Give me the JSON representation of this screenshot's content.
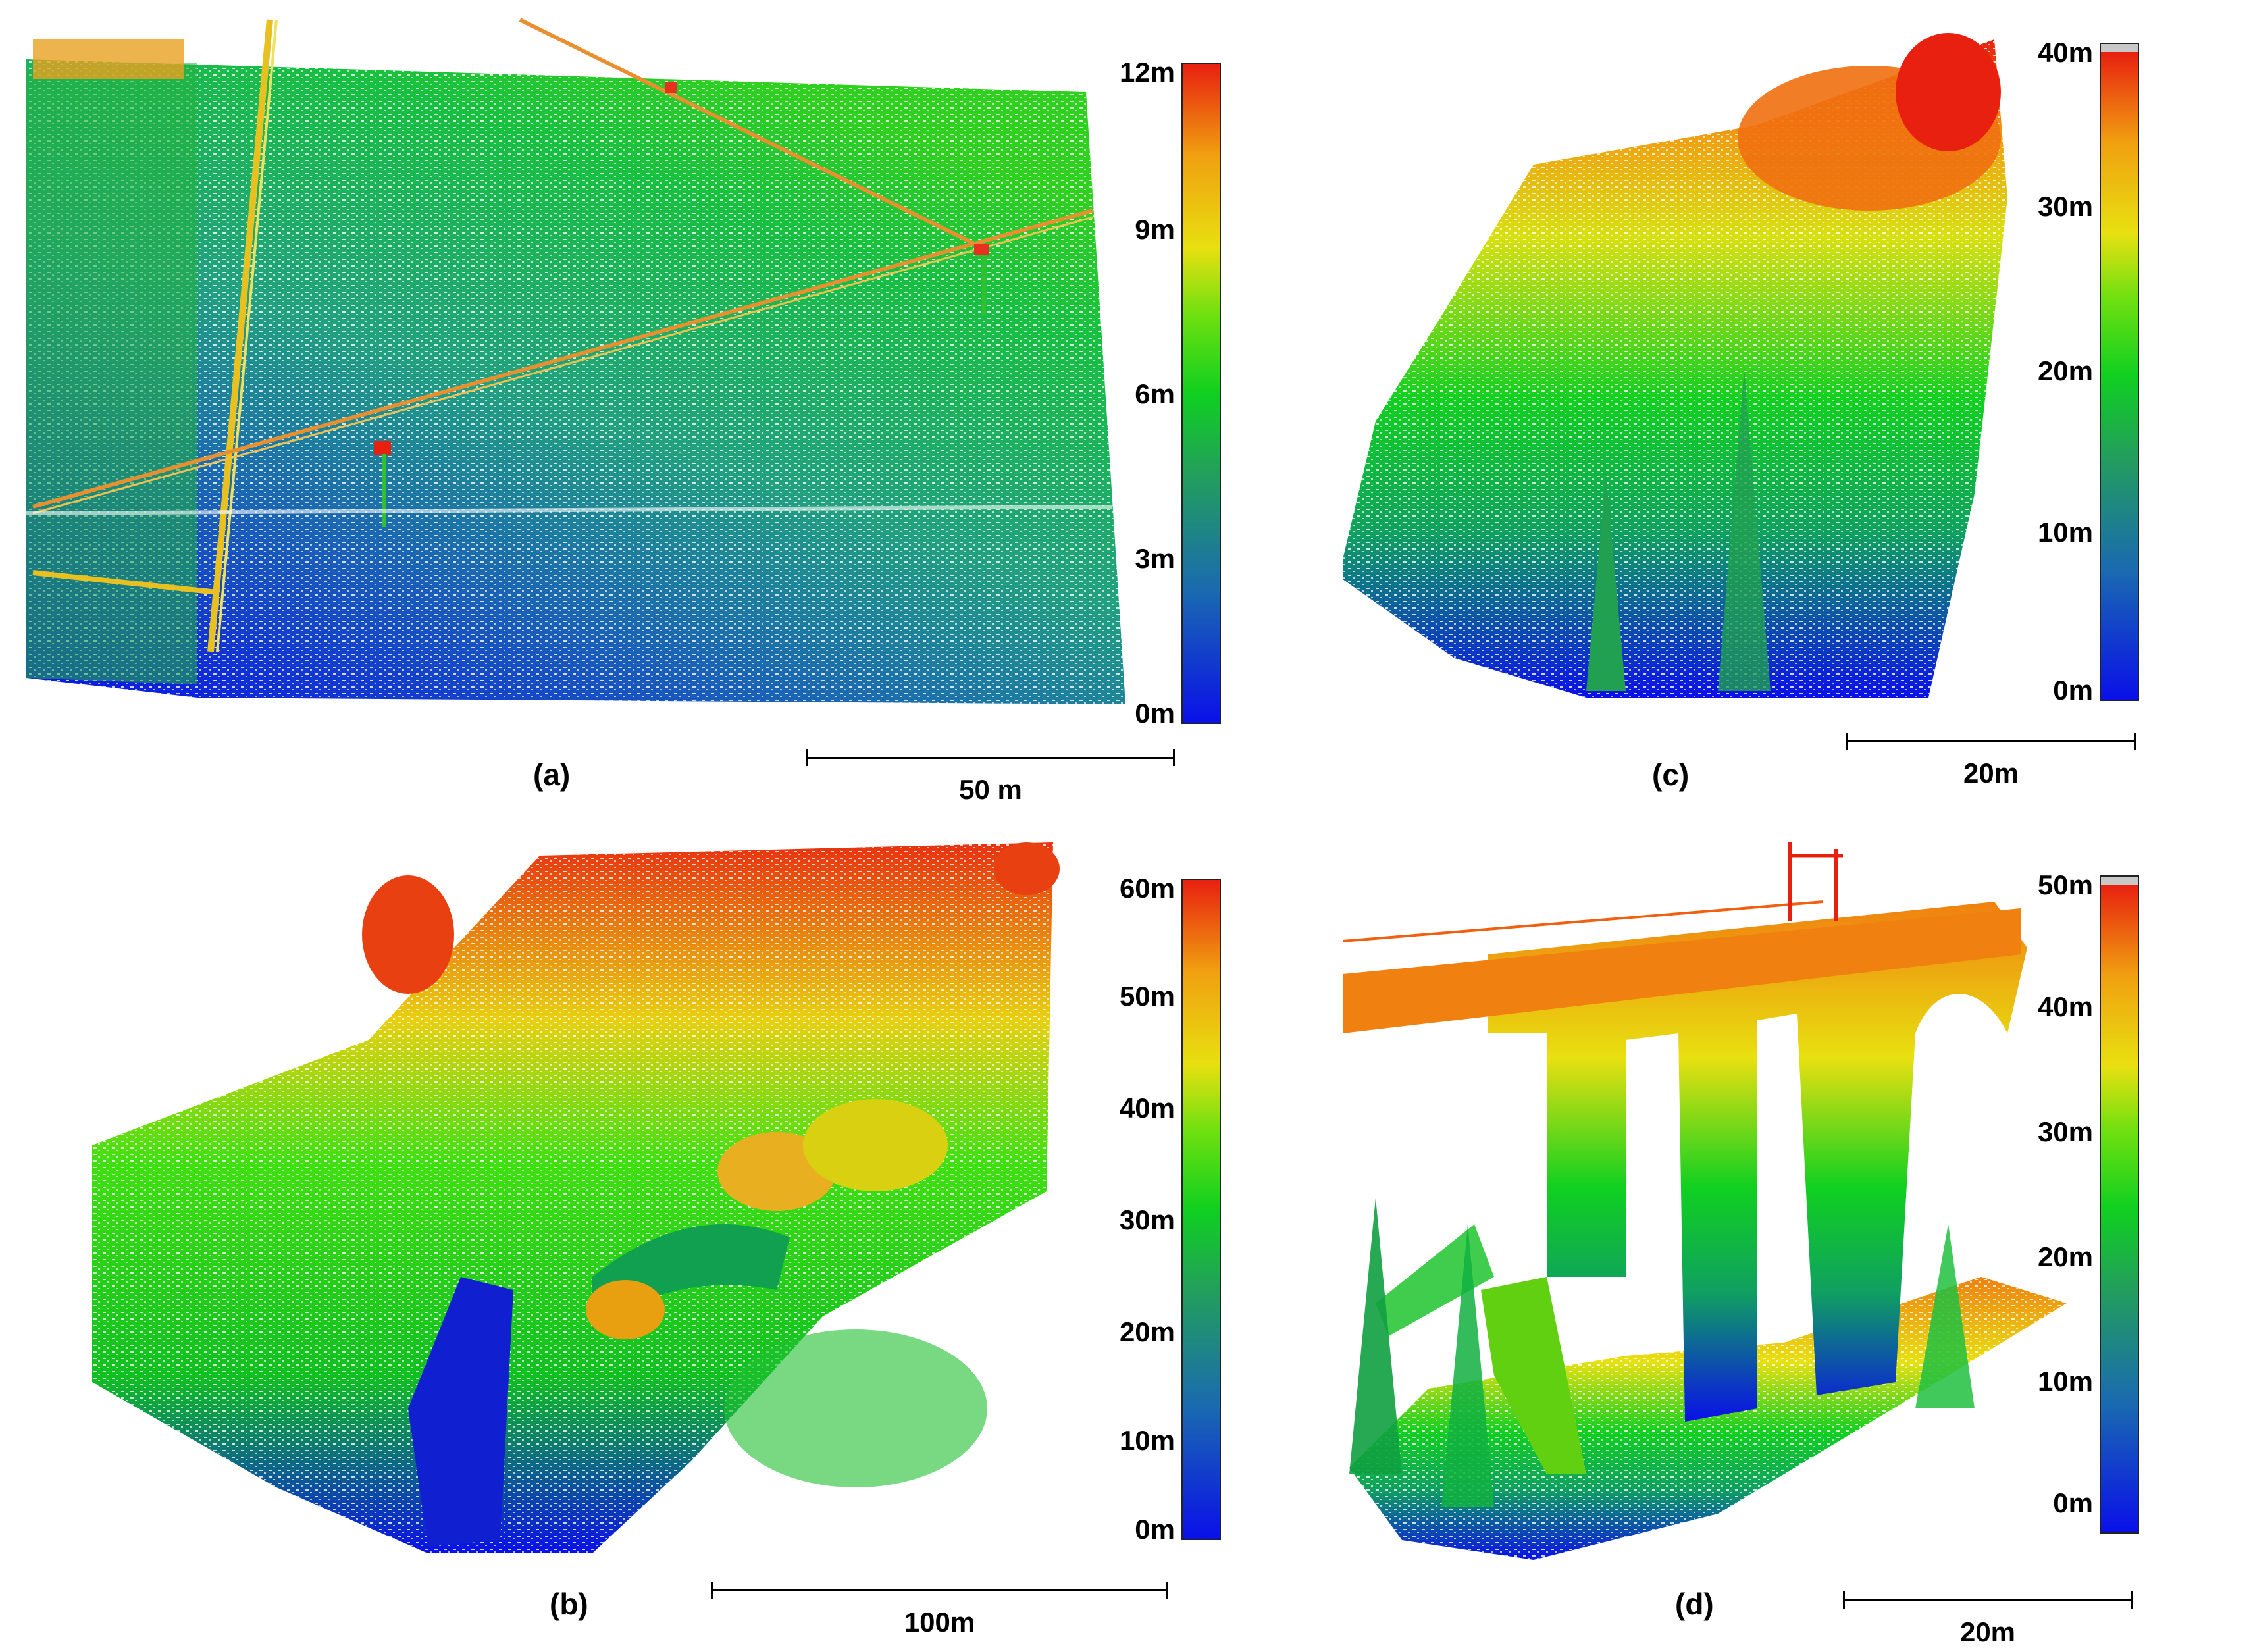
{
  "figure": {
    "panels": [
      {
        "id": "a",
        "label": "(a)",
        "colorbar": {
          "ticks": [
            "12m",
            "9m",
            "6m",
            "3m",
            "0m"
          ],
          "max_m": 12
        },
        "scalebar": "50 m"
      },
      {
        "id": "b",
        "label": "(b)",
        "colorbar": {
          "ticks": [
            "60m",
            "50m",
            "40m",
            "30m",
            "20m",
            "10m",
            "0m"
          ],
          "max_m": 60
        },
        "scalebar": "100m"
      },
      {
        "id": "c",
        "label": "(c)",
        "colorbar": {
          "ticks": [
            "40m",
            "30m",
            "20m",
            "10m",
            "0m"
          ],
          "max_m": 40
        },
        "scalebar": "20m"
      },
      {
        "id": "d",
        "label": "(d)",
        "colorbar": {
          "ticks": [
            "50m",
            "40m",
            "30m",
            "20m",
            "10m",
            "0m"
          ],
          "max_m": 50
        },
        "scalebar": "20m"
      }
    ],
    "colors": {
      "low": "#1010e0",
      "mid": "#10c020",
      "high": "#e02010",
      "ramp": [
        "#0a10e8",
        "#1a6ab0",
        "#22a05a",
        "#10d020",
        "#60e010",
        "#e8e010",
        "#f0a010",
        "#e82010"
      ]
    }
  }
}
